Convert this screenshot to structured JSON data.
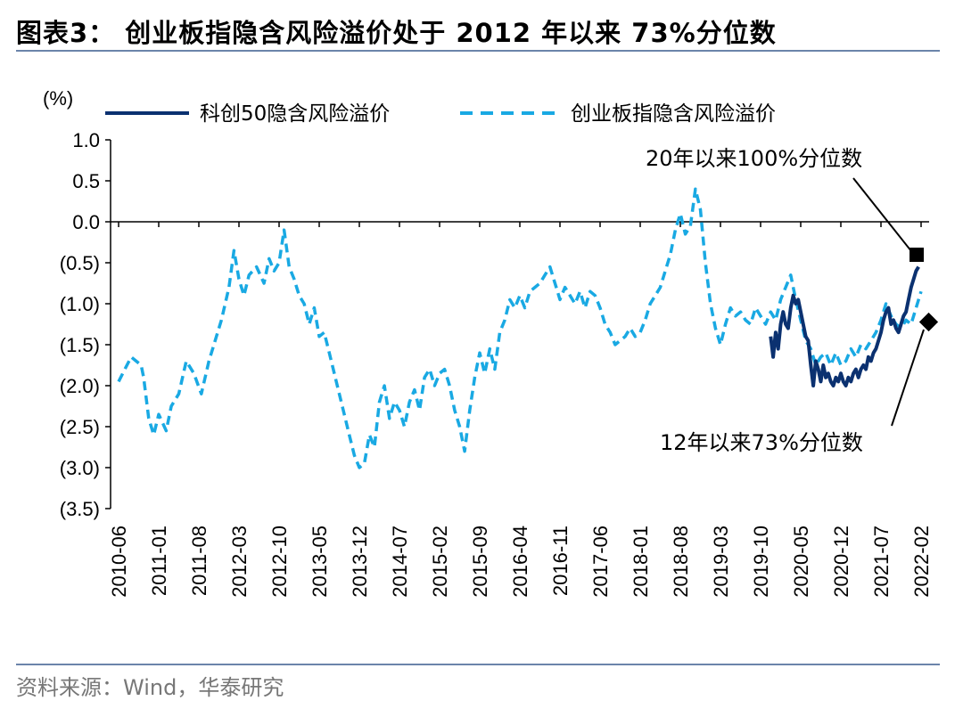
{
  "header": {
    "title": "图表3：  创业板指隐含风险溢价处于 2012 年以来 73%分位数"
  },
  "footer": {
    "source": "资料来源：Wind，华泰研究"
  },
  "colors": {
    "kc50": "#0b3170",
    "cyb": "#19a9e3",
    "rule": "#6b84aa"
  },
  "chart_data": {
    "type": "line",
    "title": "创业板指隐含风险溢价处于 2012 年以来 73%分位数",
    "ylabel": "(%)",
    "ylim": [
      -3.5,
      1.0
    ],
    "y_ticks": [
      1.0,
      0.5,
      0.0,
      -0.5,
      -1.0,
      -1.5,
      -2.0,
      -2.5,
      -3.0,
      -3.5
    ],
    "y_tick_labels": [
      "1.0",
      "0.5",
      "0.0",
      "(0.5)",
      "(1.0)",
      "(1.5)",
      "(2.0)",
      "(2.5)",
      "(3.0)",
      "(3.5)"
    ],
    "x_tick_labels": [
      "2010-06",
      "2011-01",
      "2011-08",
      "2012-03",
      "2012-10",
      "2013-05",
      "2013-12",
      "2014-07",
      "2015-02",
      "2015-09",
      "2016-04",
      "2016-11",
      "2017-06",
      "2018-01",
      "2018-08",
      "2019-03",
      "2019-10",
      "2020-05",
      "2020-12",
      "2021-07",
      "2022-02"
    ],
    "legend": [
      "科创50隐含风险溢价",
      "创业板指隐含风险溢价"
    ],
    "annotations": [
      {
        "text": "20年以来100%分位数",
        "series": "科创50隐含风险溢价"
      },
      {
        "text": "12年以来73%分位数",
        "series": "创业板指隐含风险溢价"
      }
    ],
    "series": [
      {
        "name": "创业板指隐含风险溢价",
        "style": "dashed",
        "points": [
          [
            0.0,
            -1.95
          ],
          [
            0.25,
            -1.8
          ],
          [
            0.5,
            -1.65
          ],
          [
            0.7,
            -1.7
          ],
          [
            0.9,
            -1.75
          ],
          [
            1.0,
            -1.9
          ],
          [
            1.2,
            -2.4
          ],
          [
            1.4,
            -2.6
          ],
          [
            1.6,
            -2.35
          ],
          [
            1.9,
            -2.55
          ],
          [
            2.1,
            -2.25
          ],
          [
            2.4,
            -2.1
          ],
          [
            2.7,
            -1.7
          ],
          [
            3.0,
            -1.85
          ],
          [
            3.3,
            -2.1
          ],
          [
            3.6,
            -1.7
          ],
          [
            3.9,
            -1.4
          ],
          [
            4.1,
            -1.2
          ],
          [
            4.4,
            -0.8
          ],
          [
            4.6,
            -0.35
          ],
          [
            4.8,
            -0.7
          ],
          [
            5.0,
            -0.9
          ],
          [
            5.2,
            -0.65
          ],
          [
            5.5,
            -0.55
          ],
          [
            5.8,
            -0.75
          ],
          [
            6.0,
            -0.45
          ],
          [
            6.2,
            -0.6
          ],
          [
            6.4,
            -0.5
          ],
          [
            6.6,
            -0.1
          ],
          [
            6.8,
            -0.55
          ],
          [
            7.0,
            -0.7
          ],
          [
            7.2,
            -0.9
          ],
          [
            7.4,
            -1.0
          ],
          [
            7.6,
            -1.25
          ],
          [
            7.8,
            -1.05
          ],
          [
            8.0,
            -1.4
          ],
          [
            8.2,
            -1.35
          ],
          [
            8.4,
            -1.6
          ],
          [
            8.6,
            -1.85
          ],
          [
            8.8,
            -2.1
          ],
          [
            9.0,
            -2.35
          ],
          [
            9.2,
            -2.6
          ],
          [
            9.4,
            -2.85
          ],
          [
            9.6,
            -3.0
          ],
          [
            9.8,
            -2.95
          ],
          [
            10.0,
            -2.6
          ],
          [
            10.2,
            -2.75
          ],
          [
            10.4,
            -2.2
          ],
          [
            10.6,
            -2.0
          ],
          [
            10.8,
            -2.4
          ],
          [
            11.0,
            -2.2
          ],
          [
            11.2,
            -2.3
          ],
          [
            11.4,
            -2.5
          ],
          [
            11.6,
            -2.2
          ],
          [
            11.8,
            -2.05
          ],
          [
            12.0,
            -2.3
          ],
          [
            12.2,
            -1.9
          ],
          [
            12.4,
            -1.8
          ],
          [
            12.6,
            -2.0
          ],
          [
            12.8,
            -1.85
          ],
          [
            13.0,
            -1.8
          ],
          [
            13.2,
            -2.0
          ],
          [
            13.4,
            -2.3
          ],
          [
            13.6,
            -2.5
          ],
          [
            13.8,
            -2.8
          ],
          [
            14.0,
            -2.3
          ],
          [
            14.2,
            -1.9
          ],
          [
            14.4,
            -1.6
          ],
          [
            14.6,
            -1.85
          ],
          [
            14.8,
            -1.55
          ],
          [
            15.0,
            -1.8
          ],
          [
            15.2,
            -1.35
          ],
          [
            15.4,
            -1.2
          ],
          [
            15.6,
            -0.95
          ],
          [
            15.8,
            -1.05
          ],
          [
            16.0,
            -0.9
          ],
          [
            16.2,
            -1.05
          ],
          [
            16.4,
            -0.85
          ],
          [
            16.6,
            -0.8
          ],
          [
            16.8,
            -0.75
          ],
          [
            17.0,
            -0.65
          ],
          [
            17.2,
            -0.55
          ],
          [
            17.4,
            -0.75
          ],
          [
            17.6,
            -0.95
          ],
          [
            17.8,
            -0.8
          ],
          [
            18.0,
            -0.9
          ],
          [
            18.2,
            -1.0
          ],
          [
            18.4,
            -0.85
          ],
          [
            18.6,
            -1.05
          ],
          [
            18.8,
            -0.85
          ],
          [
            19.0,
            -0.9
          ],
          [
            19.2,
            -1.05
          ],
          [
            19.4,
            -1.25
          ],
          [
            19.6,
            -1.35
          ],
          [
            19.8,
            -1.5
          ],
          [
            20.0,
            -1.45
          ],
          [
            20.2,
            -1.4
          ],
          [
            20.4,
            -1.3
          ],
          [
            20.6,
            -1.4
          ],
          [
            20.8,
            -1.35
          ],
          [
            21.0,
            -1.2
          ],
          [
            21.2,
            -1.0
          ],
          [
            21.4,
            -0.9
          ],
          [
            21.6,
            -0.8
          ],
          [
            21.8,
            -0.6
          ],
          [
            22.0,
            -0.4
          ],
          [
            22.2,
            -0.1
          ],
          [
            22.4,
            0.1
          ],
          [
            22.6,
            -0.15
          ],
          [
            22.8,
            -0.05
          ],
          [
            23.0,
            0.4
          ],
          [
            23.2,
            0.15
          ],
          [
            23.4,
            -0.5
          ],
          [
            23.6,
            -1.0
          ],
          [
            23.8,
            -1.3
          ],
          [
            24.0,
            -1.5
          ],
          [
            24.2,
            -1.25
          ],
          [
            24.4,
            -1.05
          ],
          [
            24.6,
            -1.15
          ],
          [
            24.8,
            -1.1
          ],
          [
            25.0,
            -1.2
          ],
          [
            25.2,
            -1.25
          ],
          [
            25.4,
            -1.05
          ],
          [
            25.6,
            -1.15
          ],
          [
            25.8,
            -1.25
          ],
          [
            26.0,
            -1.1
          ],
          [
            26.2,
            -1.2
          ],
          [
            26.4,
            -0.95
          ],
          [
            26.6,
            -0.8
          ],
          [
            26.8,
            -0.65
          ],
          [
            27.0,
            -0.95
          ],
          [
            27.2,
            -1.2
          ],
          [
            27.4,
            -1.45
          ],
          [
            27.6,
            -1.55
          ],
          [
            27.8,
            -1.75
          ],
          [
            28.0,
            -1.65
          ],
          [
            28.2,
            -1.6
          ],
          [
            28.4,
            -1.75
          ],
          [
            28.6,
            -1.6
          ],
          [
            28.8,
            -1.75
          ],
          [
            29.0,
            -1.7
          ],
          [
            29.2,
            -1.55
          ],
          [
            29.4,
            -1.65
          ],
          [
            29.6,
            -1.5
          ],
          [
            29.8,
            -1.55
          ],
          [
            30.0,
            -1.45
          ],
          [
            30.2,
            -1.35
          ],
          [
            30.4,
            -1.2
          ],
          [
            30.6,
            -1.0
          ],
          [
            30.8,
            -1.15
          ],
          [
            31.0,
            -1.25
          ],
          [
            31.2,
            -1.3
          ],
          [
            31.4,
            -1.2
          ],
          [
            31.6,
            -1.25
          ],
          [
            31.8,
            -1.05
          ],
          [
            32.0,
            -0.85
          ]
        ]
      },
      {
        "name": "科创50隐含风险溢价",
        "style": "solid",
        "points": [
          [
            26.0,
            -1.4
          ],
          [
            26.1,
            -1.65
          ],
          [
            26.2,
            -1.35
          ],
          [
            26.3,
            -1.55
          ],
          [
            26.4,
            -1.25
          ],
          [
            26.5,
            -1.1
          ],
          [
            26.6,
            -1.25
          ],
          [
            26.7,
            -1.3
          ],
          [
            26.8,
            -1.05
          ],
          [
            26.9,
            -0.9
          ],
          [
            27.0,
            -1.0
          ],
          [
            27.1,
            -0.95
          ],
          [
            27.2,
            -1.1
          ],
          [
            27.3,
            -1.25
          ],
          [
            27.4,
            -1.4
          ],
          [
            27.5,
            -1.45
          ],
          [
            27.6,
            -1.75
          ],
          [
            27.7,
            -2.0
          ],
          [
            27.8,
            -1.7
          ],
          [
            27.9,
            -1.8
          ],
          [
            28.0,
            -1.95
          ],
          [
            28.1,
            -1.75
          ],
          [
            28.2,
            -1.9
          ],
          [
            28.3,
            -1.85
          ],
          [
            28.4,
            -1.95
          ],
          [
            28.5,
            -2.0
          ],
          [
            28.6,
            -1.9
          ],
          [
            28.7,
            -1.95
          ],
          [
            28.8,
            -1.85
          ],
          [
            28.9,
            -1.95
          ],
          [
            29.0,
            -2.0
          ],
          [
            29.1,
            -1.9
          ],
          [
            29.2,
            -1.95
          ],
          [
            29.3,
            -1.85
          ],
          [
            29.4,
            -1.8
          ],
          [
            29.5,
            -1.9
          ],
          [
            29.6,
            -1.8
          ],
          [
            29.7,
            -1.75
          ],
          [
            29.8,
            -1.8
          ],
          [
            29.9,
            -1.65
          ],
          [
            30.0,
            -1.7
          ],
          [
            30.1,
            -1.6
          ],
          [
            30.2,
            -1.55
          ],
          [
            30.3,
            -1.45
          ],
          [
            30.4,
            -1.35
          ],
          [
            30.5,
            -1.2
          ],
          [
            30.6,
            -1.1
          ],
          [
            30.7,
            -1.05
          ],
          [
            30.8,
            -1.25
          ],
          [
            30.9,
            -1.2
          ],
          [
            31.0,
            -1.3
          ],
          [
            31.1,
            -1.35
          ],
          [
            31.2,
            -1.25
          ],
          [
            31.3,
            -1.15
          ],
          [
            31.4,
            -1.1
          ],
          [
            31.5,
            -0.95
          ],
          [
            31.6,
            -0.8
          ],
          [
            31.7,
            -0.7
          ],
          [
            31.8,
            -0.6
          ],
          [
            31.9,
            -0.55
          ]
        ]
      }
    ]
  }
}
